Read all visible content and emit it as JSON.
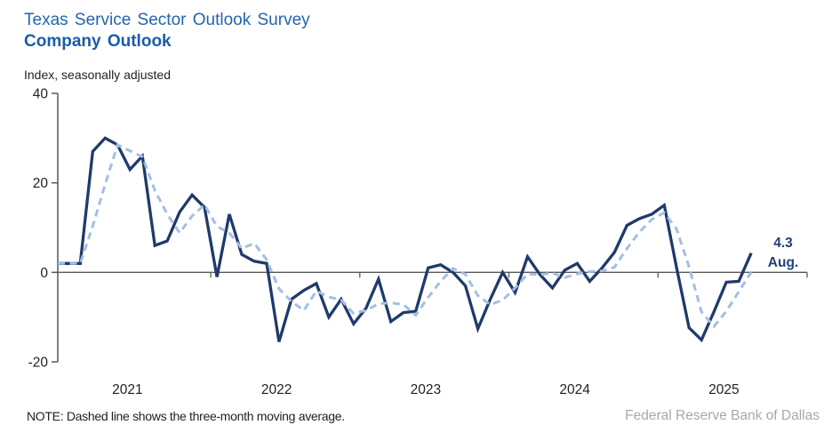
{
  "header": {
    "title": "Texas Service Sector Outlook Survey",
    "subtitle": "Company Outlook",
    "units": "Index, seasonally adjusted"
  },
  "annotation": {
    "value": "4.3",
    "month": "Aug."
  },
  "note": "NOTE: Dashed line shows the three-month moving average.",
  "footer": "Federal Reserve Bank of Dallas",
  "colors": {
    "title": "#2265AE",
    "subtitle": "#1B5CAC",
    "solid_line": "#1F3A6B",
    "dashed_line": "#A4BEE3",
    "annotation": "#1F4178",
    "axis": "#58595B",
    "text": "#231F20",
    "footer": "#A6A8AB"
  },
  "chart_data": {
    "type": "line",
    "title": "Company Outlook",
    "ylabel": "Index, seasonally adjusted",
    "ylim": [
      -20,
      40
    ],
    "yticks": [
      40,
      20,
      0,
      -20
    ],
    "xtick_year_labels": [
      "2021",
      "2022",
      "2023",
      "2024",
      "2025"
    ],
    "x_start": "2021-01",
    "x_end": "2025-08",
    "frequency": "monthly",
    "grid": false,
    "legend_position": "none",
    "series": [
      {
        "name": "Company outlook index",
        "style": "solid",
        "values": [
          2,
          2,
          27,
          30,
          28.5,
          23,
          26,
          6,
          7,
          13.5,
          17.3,
          14.5,
          -1,
          13,
          4,
          2.5,
          2,
          -15.5,
          -6,
          -4,
          -2.5,
          -10,
          -6,
          -11.5,
          -8,
          -1.5,
          -11,
          -9,
          -8.7,
          1,
          1.7,
          0,
          -3,
          -12.6,
          -6,
          0,
          -4.5,
          3.5,
          -0.5,
          -3.5,
          0.5,
          2,
          -2,
          1,
          4.5,
          10.5,
          12,
          13,
          15,
          1,
          -12.4,
          -15.1,
          -8.8,
          -2.2,
          -2,
          4.3
        ]
      },
      {
        "name": "Three-month moving average",
        "style": "dashed",
        "derived": "trailing_mean_3_of_series_0"
      }
    ],
    "last_point_annotation": "4.3 Aug."
  }
}
